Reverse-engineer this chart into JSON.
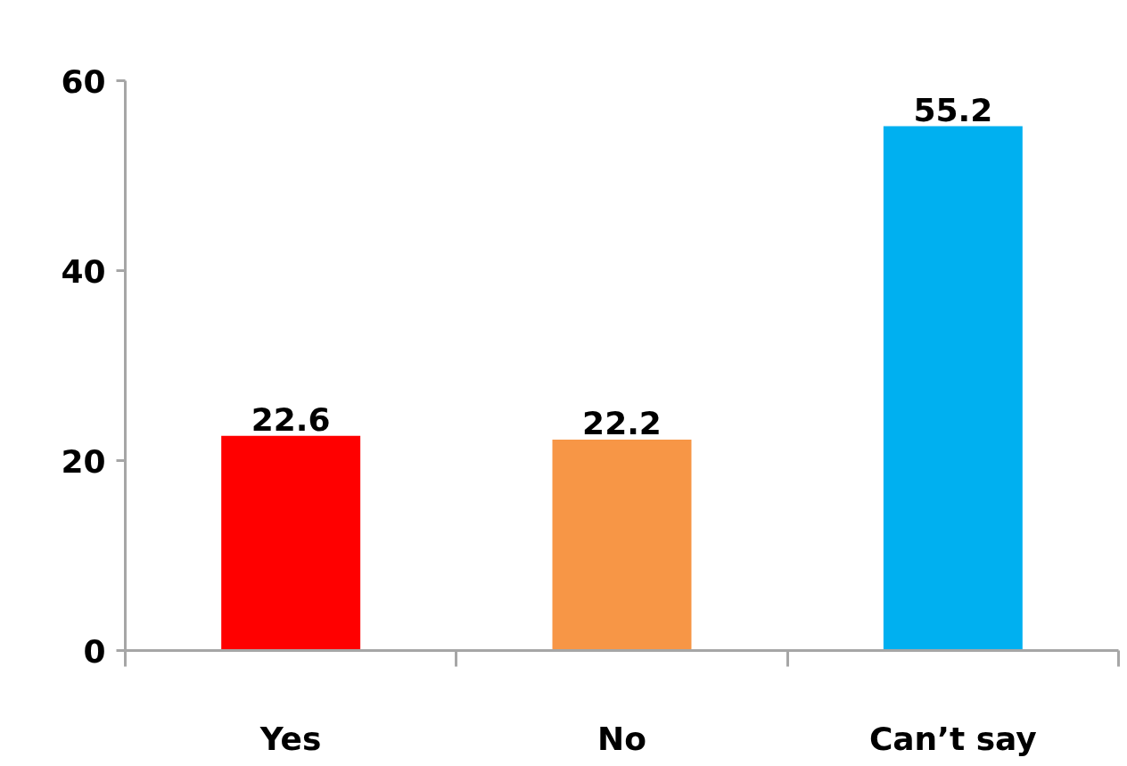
{
  "chart_data": {
    "type": "bar",
    "categories": [
      "Yes",
      "No",
      "Can’t say"
    ],
    "values": [
      22.6,
      22.2,
      55.2
    ],
    "colors": [
      "#ff0000",
      "#f79646",
      "#00b0f0"
    ],
    "ylim": [
      0,
      60
    ],
    "yticks": [
      0,
      20,
      40,
      60
    ],
    "grid": false,
    "data_labels": true
  }
}
